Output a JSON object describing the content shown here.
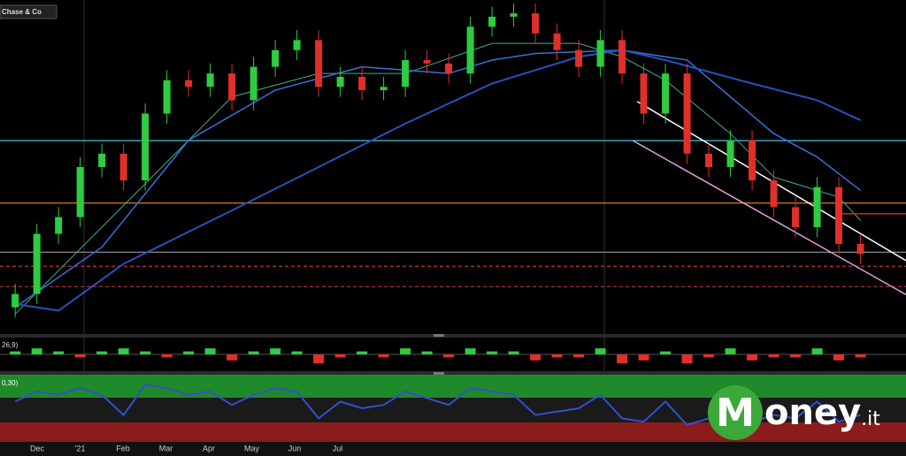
{
  "chart_data": {
    "type": "candlestick",
    "instrument": "Chase & Co",
    "macd_label": "26,9)",
    "rsi_label": "0,30)",
    "xlim": [
      -0.7,
      41.1
    ],
    "ylim": [
      0,
      100
    ],
    "open": [
      8,
      12,
      30,
      35,
      50,
      54,
      46,
      66,
      76,
      74,
      78,
      70,
      80,
      85,
      88,
      74,
      77,
      73,
      74,
      82,
      81,
      78,
      92,
      95,
      96,
      90,
      85,
      80,
      88,
      78,
      66,
      78,
      54,
      50,
      58,
      46,
      38,
      32,
      44,
      27
    ],
    "high": [
      15,
      33,
      38,
      53,
      57,
      57,
      69,
      79,
      79,
      81,
      81,
      83,
      88,
      91,
      91,
      80,
      80,
      77,
      85,
      85,
      84,
      95,
      98,
      99,
      99,
      93,
      88,
      91,
      91,
      81,
      81,
      81,
      57,
      61,
      61,
      49,
      41,
      47,
      47,
      30
    ],
    "low": [
      5,
      9,
      27,
      32,
      47,
      43,
      43,
      63,
      71,
      71,
      67,
      67,
      77,
      82,
      71,
      71,
      70,
      70,
      71,
      78,
      75,
      75,
      89,
      92,
      87,
      82,
      77,
      77,
      75,
      63,
      63,
      51,
      47,
      47,
      43,
      35,
      29,
      29,
      24,
      21
    ],
    "close": [
      12,
      30,
      35,
      50,
      54,
      46,
      66,
      76,
      74,
      78,
      70,
      80,
      85,
      88,
      74,
      77,
      73,
      74,
      82,
      81,
      78,
      92,
      95,
      96,
      90,
      85,
      80,
      88,
      78,
      66,
      78,
      54,
      50,
      58,
      46,
      38,
      32,
      44,
      27,
      24
    ],
    "up_color": "#2ecc40",
    "down_color": "#e0302a",
    "moving_averages": [
      {
        "color": "#3fae8c",
        "width": 1,
        "x": [
          0,
          6,
          10,
          14,
          18,
          22,
          26,
          28,
          30,
          33,
          35,
          38,
          39
        ],
        "values": [
          6,
          45,
          71,
          78,
          78,
          87,
          87,
          83,
          76,
          60,
          47,
          41,
          34
        ]
      },
      {
        "color": "#3a6fd8",
        "width": 1.5,
        "x": [
          0,
          4,
          8,
          12,
          16,
          20,
          22,
          24,
          28,
          31,
          33,
          35,
          37,
          39
        ],
        "values": [
          8,
          26,
          58,
          73,
          80,
          78,
          82,
          84,
          85,
          82,
          71,
          60,
          53,
          43
        ]
      },
      {
        "color": "#2850c0",
        "width": 2,
        "x": [
          0,
          2,
          5,
          10,
          14,
          18,
          22,
          26,
          28,
          30,
          34,
          37,
          39
        ],
        "values": [
          9,
          7,
          21,
          37,
          50,
          63,
          75,
          83,
          85,
          82,
          75,
          70,
          64
        ]
      }
    ],
    "levels": [
      {
        "value": 57.9,
        "color": "#3cc8e0",
        "dash": false
      },
      {
        "value": 39.2,
        "color": "#f08a20",
        "dash": false
      },
      {
        "value": 24.5,
        "color": "#888888",
        "dash": false
      },
      {
        "value": 20.3,
        "color": "#c03030",
        "dash": true
      },
      {
        "value": 14.2,
        "color": "#c03030",
        "dash": true
      }
    ],
    "trendlines": [
      {
        "color": "#ffffff",
        "x": [
          28.7,
          41.1
        ],
        "values": [
          69.6,
          22
        ]
      },
      {
        "color": "#e8a0e0",
        "x": [
          28.5,
          41.1
        ],
        "values": [
          57.9,
          11.8
        ]
      },
      {
        "color": "#c03030",
        "x": [
          38.1,
          41.1
        ],
        "values": [
          36,
          36
        ]
      }
    ],
    "macd": {
      "ylim": [
        -5,
        5
      ],
      "values": [
        1,
        2,
        1,
        -1,
        1,
        2,
        1,
        -1,
        1,
        2,
        -2,
        1,
        2,
        1,
        -3,
        -1,
        1,
        -1,
        2,
        1,
        -1,
        2,
        1,
        1,
        -2,
        -1,
        -1,
        2,
        -3,
        -2,
        1,
        -3,
        -1,
        2,
        -2,
        -1,
        -1,
        2,
        -2,
        -1
      ]
    },
    "rsi": {
      "ylim": [
        0,
        100
      ],
      "color": "#3050d0",
      "values": [
        60,
        75,
        70,
        80,
        70,
        40,
        85,
        80,
        70,
        75,
        55,
        70,
        80,
        75,
        35,
        60,
        50,
        55,
        75,
        65,
        55,
        80,
        75,
        70,
        40,
        45,
        50,
        70,
        35,
        30,
        60,
        25,
        35,
        55,
        30,
        40,
        35,
        60,
        30,
        40
      ]
    },
    "x_labels": [
      "Dec",
      "'21",
      "Feb",
      "Mar",
      "Apr",
      "May",
      "Jun",
      "Jul"
    ]
  },
  "logo": {
    "initial": "M",
    "word": "oney",
    "suffix": ".it"
  }
}
